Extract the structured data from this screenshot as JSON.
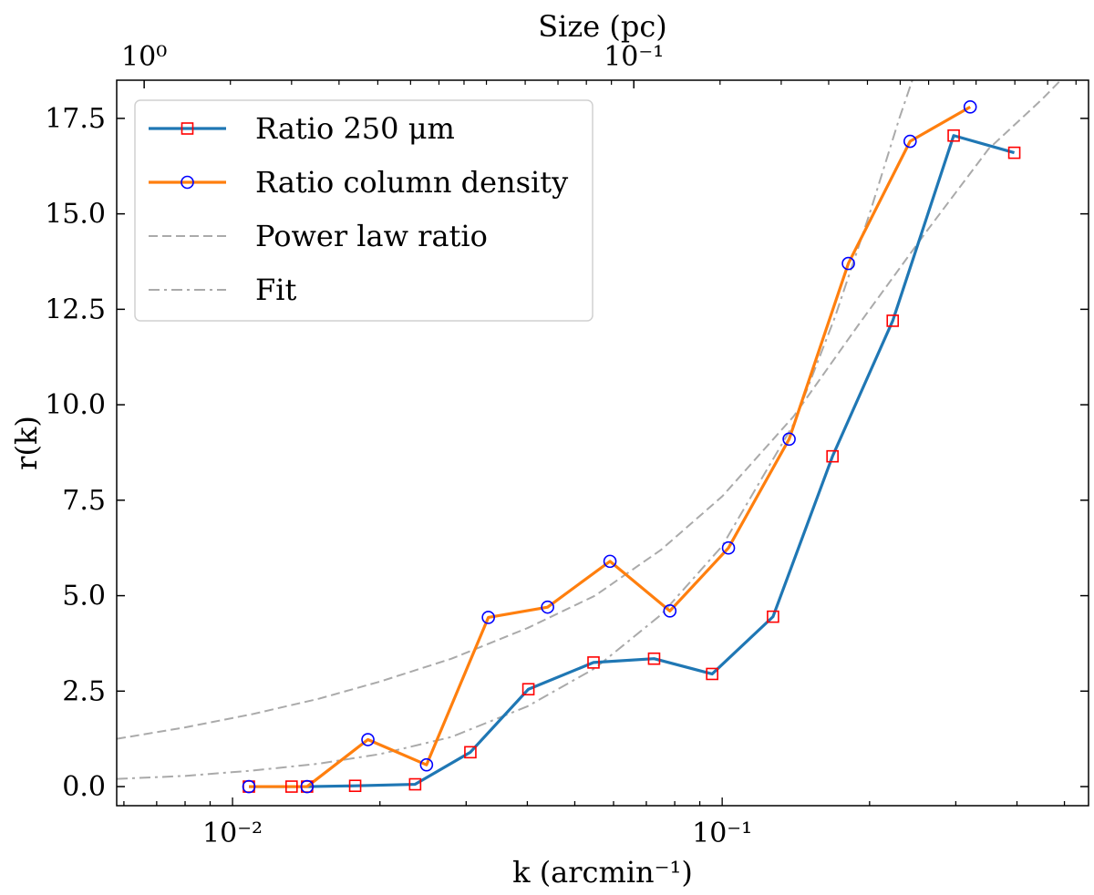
{
  "chart_data": {
    "type": "line",
    "x_scale": "log",
    "xlabel": "k (arcmin⁻¹)",
    "ylabel": "r(k)",
    "top_axis_label": "Size (pc)",
    "xlim": [
      0.0058,
      0.56
    ],
    "ylim": [
      -0.5,
      18.5
    ],
    "x_ticks": [
      {
        "value": 0.01,
        "label": "10⁻²"
      },
      {
        "value": 0.1,
        "label": "10⁻¹"
      }
    ],
    "top_ticks": [
      {
        "k": 0.0066,
        "label": "10⁰"
      },
      {
        "k": 0.066,
        "label": "10⁻¹"
      }
    ],
    "y_ticks": [
      {
        "value": 0.0,
        "label": "0.0"
      },
      {
        "value": 2.5,
        "label": "2.5"
      },
      {
        "value": 5.0,
        "label": "5.0"
      },
      {
        "value": 7.5,
        "label": "7.5"
      },
      {
        "value": 10.0,
        "label": "10.0"
      },
      {
        "value": 12.5,
        "label": "12.5"
      },
      {
        "value": 15.0,
        "label": "15.0"
      },
      {
        "value": 17.5,
        "label": "17.5"
      }
    ],
    "legend_position": "upper-left",
    "series": [
      {
        "name": "Ratio 250 μm",
        "color": "#1f77b4",
        "marker": "square",
        "marker_color": "#ff0000",
        "x": [
          0.0108,
          0.0132,
          0.0142,
          0.0178,
          0.0236,
          0.0306,
          0.0402,
          0.0546,
          0.0726,
          0.0954,
          0.127,
          0.168,
          0.223,
          0.297,
          0.395
        ],
        "y": [
          0.0,
          0.0,
          0.0,
          0.02,
          0.06,
          0.9,
          2.55,
          3.25,
          3.35,
          2.95,
          4.45,
          8.65,
          12.2,
          17.05,
          16.6
        ]
      },
      {
        "name": "Ratio column density",
        "color": "#ff7f0e",
        "marker": "circle",
        "marker_color": "#0000ff",
        "x": [
          0.0108,
          0.0142,
          0.0189,
          0.0249,
          0.0333,
          0.044,
          0.059,
          0.0782,
          0.103,
          0.137,
          0.181,
          0.242,
          0.321
        ],
        "y": [
          0.0,
          0.0,
          1.23,
          0.57,
          4.43,
          4.7,
          5.9,
          4.6,
          6.25,
          9.1,
          13.7,
          16.9,
          17.8
        ]
      },
      {
        "name": "Power law ratio",
        "color": "#aaaaaa",
        "style": "dashed",
        "x": [
          0.0058,
          0.008,
          0.011,
          0.015,
          0.02,
          0.028,
          0.04,
          0.055,
          0.075,
          0.1,
          0.14,
          0.19,
          0.26,
          0.35,
          0.45,
          0.5
        ],
        "y": [
          1.25,
          1.55,
          1.9,
          2.3,
          2.75,
          3.35,
          4.15,
          5.0,
          6.2,
          7.6,
          9.7,
          12.1,
          14.5,
          16.7,
          18.0,
          18.6
        ]
      },
      {
        "name": "Fit",
        "color": "#aaaaaa",
        "style": "dashdot",
        "x": [
          0.0058,
          0.008,
          0.011,
          0.015,
          0.02,
          0.028,
          0.04,
          0.055,
          0.075,
          0.1,
          0.14,
          0.17,
          0.2,
          0.23,
          0.26,
          0.28
        ],
        "y": [
          0.2,
          0.28,
          0.42,
          0.6,
          0.85,
          1.3,
          2.1,
          3.1,
          4.5,
          6.3,
          9.5,
          12.3,
          15.0,
          17.5,
          19.5,
          20.5
        ]
      }
    ]
  }
}
